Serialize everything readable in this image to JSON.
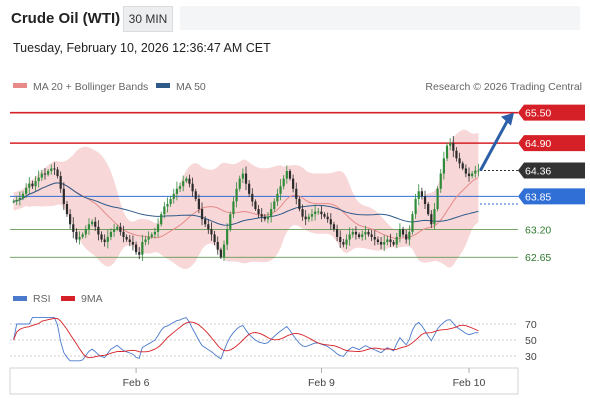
{
  "header": {
    "title": "Crude Oil (WTI)",
    "timeframe": "30 MIN",
    "timestamp": "Tuesday, February 10, 2026 12:36:47 AM CET"
  },
  "legend": {
    "ma20": "MA 20 + Bollinger Bands",
    "ma50": "MA 50",
    "research": "Research © 2026 Trading Central",
    "rsi": "RSI",
    "rsi_ma": "9MA"
  },
  "colors": {
    "resistance": "#d62027",
    "support": "#4a8a3a",
    "pivot": "#2f6fd6",
    "last": "#333333",
    "ma20": "#e88a8a",
    "ma50": "#2e5a8a",
    "bollinger": "#f6d0d0",
    "bull": "#2f8a3a",
    "bear": "#2b2b2b",
    "arrow": "#2c5fa8",
    "rsi": "#4a7acc",
    "rsi_ma": "#d62027"
  },
  "chart_data": [
    {
      "type": "candlestick",
      "title": "Crude Oil (WTI)",
      "timeframe": "30 MIN",
      "ylim": [
        62.3,
        65.75
      ],
      "x_tick_labels": [
        "Feb 6",
        "Feb 9",
        "Feb 10"
      ],
      "levels": [
        {
          "value": 65.5,
          "label": "65.50",
          "kind": "resistance"
        },
        {
          "value": 64.9,
          "label": "64.90",
          "kind": "resistance"
        },
        {
          "value": 64.36,
          "label": "64.36",
          "kind": "last"
        },
        {
          "value": 63.85,
          "label": "63.85",
          "kind": "pivot"
        },
        {
          "value": 63.2,
          "label": "63.20",
          "kind": "support"
        },
        {
          "value": 62.65,
          "label": "62.65",
          "kind": "support"
        }
      ],
      "close": [
        63.75,
        63.78,
        63.82,
        63.9,
        64.02,
        64.1,
        64.05,
        64.15,
        64.22,
        64.3,
        64.28,
        64.35,
        64.4,
        64.38,
        64.25,
        64.0,
        63.7,
        63.5,
        63.3,
        63.15,
        63.0,
        63.05,
        63.1,
        63.2,
        63.3,
        63.35,
        63.25,
        63.1,
        63.0,
        62.95,
        63.05,
        63.15,
        63.2,
        63.25,
        63.15,
        63.05,
        63.0,
        62.95,
        62.9,
        62.75,
        62.7,
        62.95,
        63.0,
        63.05,
        63.1,
        63.15,
        63.3,
        63.5,
        63.65,
        63.7,
        63.8,
        63.9,
        64.0,
        64.05,
        64.15,
        64.2,
        64.1,
        63.95,
        63.8,
        63.6,
        63.4,
        63.3,
        63.2,
        63.1,
        62.95,
        62.8,
        62.65,
        62.9,
        63.2,
        63.5,
        63.75,
        64.0,
        64.2,
        64.3,
        64.1,
        63.9,
        63.75,
        63.6,
        63.5,
        63.45,
        63.4,
        63.45,
        63.6,
        63.75,
        63.9,
        64.05,
        64.2,
        64.35,
        64.2,
        64.0,
        63.8,
        63.6,
        63.45,
        63.4,
        63.45,
        63.5,
        63.55,
        63.55,
        63.5,
        63.45,
        63.4,
        63.3,
        63.2,
        63.05,
        62.95,
        62.9,
        63.0,
        63.1,
        63.15,
        63.1,
        63.05,
        63.1,
        63.15,
        63.1,
        63.05,
        63.0,
        62.95,
        62.9,
        62.95,
        63.0,
        62.95,
        62.9,
        63.05,
        63.2,
        63.1,
        63.0,
        63.15,
        63.5,
        63.8,
        63.95,
        63.85,
        63.7,
        63.5,
        63.3,
        63.6,
        64.0,
        64.3,
        64.6,
        64.85,
        64.9,
        64.75,
        64.6,
        64.5,
        64.4,
        64.3,
        64.25,
        64.3,
        64.36,
        64.36
      ],
      "rsi_levels": [
        30,
        50,
        70
      ],
      "rsi_ylim": [
        20,
        80
      ]
    }
  ]
}
